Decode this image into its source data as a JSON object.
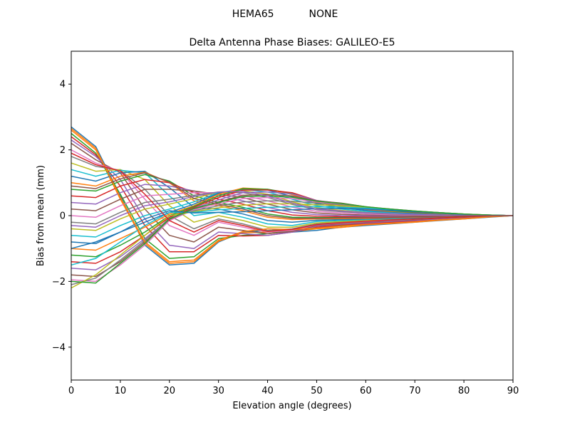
{
  "suptitle": "HEMA65           NONE",
  "chart_data": {
    "type": "line",
    "title": "Delta Antenna Phase Biases: GALILEO-E5",
    "xlabel": "Elevation angle (degrees)",
    "ylabel": "Bias from mean (mm)",
    "xlim": [
      0,
      90
    ],
    "ylim": [
      -5,
      5
    ],
    "xticks": [
      0,
      10,
      20,
      30,
      40,
      50,
      60,
      70,
      80,
      90
    ],
    "yticks": [
      -4,
      -2,
      0,
      2,
      4
    ],
    "x": [
      0,
      5,
      10,
      15,
      20,
      25,
      30,
      35,
      40,
      45,
      50,
      55,
      60,
      65,
      70,
      75,
      80,
      85,
      90
    ],
    "grid": false,
    "legend": "none",
    "colors": [
      "#1f77b4",
      "#ff7f0e",
      "#2ca02c",
      "#d62728",
      "#9467bd",
      "#8c564b",
      "#e377c2",
      "#7f7f7f",
      "#bcbd22",
      "#17becf"
    ],
    "series": [
      {
        "values": [
          2.7,
          2.1,
          0.6,
          -0.9,
          -1.5,
          -1.45,
          -0.8,
          -0.5,
          -0.45,
          -0.5,
          -0.45,
          -0.35,
          -0.3,
          -0.25,
          -0.2,
          -0.15,
          -0.1,
          -0.05,
          0.0
        ]
      },
      {
        "values": [
          2.6,
          2.0,
          0.5,
          -0.85,
          -1.45,
          -1.4,
          -0.78,
          -0.52,
          -0.5,
          -0.48,
          -0.4,
          -0.36,
          -0.28,
          -0.24,
          -0.2,
          -0.14,
          -0.1,
          -0.04,
          0.0
        ]
      },
      {
        "values": [
          2.5,
          1.9,
          0.65,
          -0.7,
          -1.3,
          -1.25,
          -0.7,
          -0.6,
          -0.55,
          -0.45,
          -0.38,
          -0.3,
          -0.26,
          -0.22,
          -0.18,
          -0.12,
          -0.08,
          -0.03,
          0.0
        ]
      },
      {
        "values": [
          2.4,
          1.85,
          0.9,
          -0.3,
          -1.1,
          -1.1,
          -0.6,
          -0.62,
          -0.6,
          -0.5,
          -0.35,
          -0.28,
          -0.24,
          -0.2,
          -0.16,
          -0.1,
          -0.06,
          -0.02,
          0.0
        ]
      },
      {
        "values": [
          2.3,
          1.8,
          1.1,
          -0.1,
          -0.9,
          -1.0,
          -0.5,
          -0.55,
          -0.6,
          -0.5,
          -0.32,
          -0.26,
          -0.22,
          -0.18,
          -0.14,
          -0.1,
          -0.06,
          -0.02,
          0.0
        ]
      },
      {
        "values": [
          2.2,
          1.7,
          1.3,
          0.2,
          -0.6,
          -0.8,
          -0.35,
          -0.45,
          -0.55,
          -0.48,
          -0.3,
          -0.24,
          -0.2,
          -0.16,
          -0.12,
          -0.08,
          -0.05,
          -0.02,
          0.0
        ]
      },
      {
        "values": [
          2.0,
          1.6,
          1.35,
          0.5,
          -0.3,
          -0.6,
          -0.2,
          -0.35,
          -0.5,
          -0.45,
          -0.28,
          -0.22,
          -0.18,
          -0.14,
          -0.1,
          -0.07,
          -0.04,
          -0.01,
          0.0
        ]
      },
      {
        "values": [
          1.8,
          1.5,
          1.38,
          0.8,
          0.0,
          -0.4,
          -0.1,
          -0.25,
          -0.45,
          -0.4,
          -0.25,
          -0.2,
          -0.16,
          -0.12,
          -0.09,
          -0.06,
          -0.03,
          -0.01,
          0.0
        ]
      },
      {
        "values": [
          1.6,
          1.35,
          1.4,
          1.1,
          0.3,
          -0.2,
          0.0,
          -0.15,
          -0.35,
          -0.35,
          -0.22,
          -0.18,
          -0.14,
          -0.1,
          -0.08,
          -0.05,
          -0.03,
          -0.01,
          0.0
        ]
      },
      {
        "values": [
          1.4,
          1.2,
          1.38,
          1.3,
          0.6,
          0.0,
          0.1,
          -0.05,
          -0.25,
          -0.3,
          -0.18,
          -0.15,
          -0.12,
          -0.09,
          -0.07,
          -0.04,
          -0.02,
          -0.01,
          0.0
        ]
      },
      {
        "values": [
          1.2,
          1.05,
          1.3,
          1.35,
          0.85,
          0.25,
          0.2,
          0.05,
          -0.15,
          -0.2,
          -0.14,
          -0.12,
          -0.1,
          -0.08,
          -0.06,
          -0.04,
          -0.02,
          0.0,
          0.0
        ]
      },
      {
        "values": [
          1.0,
          0.9,
          1.2,
          1.32,
          1.0,
          0.45,
          0.3,
          0.15,
          -0.05,
          -0.12,
          -0.1,
          -0.09,
          -0.08,
          -0.06,
          -0.05,
          -0.03,
          -0.02,
          0.0,
          0.0
        ]
      },
      {
        "values": [
          0.8,
          0.75,
          1.05,
          1.25,
          1.05,
          0.6,
          0.4,
          0.25,
          0.05,
          -0.05,
          -0.06,
          -0.06,
          -0.05,
          -0.04,
          -0.03,
          -0.02,
          -0.01,
          0.0,
          0.0
        ]
      },
      {
        "values": [
          0.6,
          0.55,
          0.9,
          1.1,
          1.0,
          0.7,
          0.5,
          0.35,
          0.15,
          0.02,
          -0.02,
          -0.03,
          -0.03,
          -0.02,
          -0.02,
          -0.01,
          -0.01,
          0.0,
          0.0
        ]
      },
      {
        "values": [
          0.4,
          0.35,
          0.7,
          0.95,
          0.9,
          0.75,
          0.6,
          0.45,
          0.25,
          0.1,
          0.03,
          0.0,
          -0.01,
          -0.01,
          -0.01,
          0.0,
          0.0,
          0.0,
          0.0
        ]
      },
      {
        "values": [
          0.2,
          0.15,
          0.5,
          0.8,
          0.8,
          0.75,
          0.65,
          0.55,
          0.35,
          0.18,
          0.08,
          0.04,
          0.02,
          0.01,
          0.0,
          0.0,
          0.0,
          0.0,
          0.0
        ]
      },
      {
        "values": [
          0.0,
          -0.05,
          0.3,
          0.6,
          0.65,
          0.7,
          0.7,
          0.62,
          0.45,
          0.26,
          0.13,
          0.08,
          0.05,
          0.03,
          0.02,
          0.01,
          0.0,
          0.0,
          0.0
        ]
      },
      {
        "values": [
          -0.2,
          -0.25,
          0.1,
          0.4,
          0.5,
          0.62,
          0.72,
          0.7,
          0.55,
          0.34,
          0.18,
          0.12,
          0.08,
          0.05,
          0.03,
          0.02,
          0.01,
          0.0,
          0.0
        ]
      },
      {
        "values": [
          -0.4,
          -0.45,
          -0.1,
          0.2,
          0.35,
          0.52,
          0.72,
          0.76,
          0.65,
          0.42,
          0.24,
          0.16,
          0.1,
          0.07,
          0.05,
          0.03,
          0.01,
          0.0,
          0.0
        ]
      },
      {
        "values": [
          -0.6,
          -0.65,
          -0.3,
          0.0,
          0.2,
          0.42,
          0.7,
          0.8,
          0.72,
          0.5,
          0.3,
          0.2,
          0.13,
          0.09,
          0.06,
          0.04,
          0.02,
          0.0,
          0.0
        ]
      },
      {
        "values": [
          -0.8,
          -0.85,
          -0.5,
          -0.2,
          0.1,
          0.35,
          0.68,
          0.82,
          0.78,
          0.58,
          0.36,
          0.24,
          0.16,
          0.11,
          0.07,
          0.05,
          0.02,
          0.01,
          0.0
        ]
      },
      {
        "values": [
          -1.0,
          -1.05,
          -0.7,
          -0.35,
          0.05,
          0.3,
          0.65,
          0.84,
          0.8,
          0.64,
          0.4,
          0.28,
          0.19,
          0.13,
          0.09,
          0.06,
          0.03,
          0.01,
          0.0
        ]
      },
      {
        "values": [
          -1.2,
          -1.25,
          -0.9,
          -0.5,
          0.0,
          0.28,
          0.6,
          0.82,
          0.8,
          0.68,
          0.44,
          0.32,
          0.22,
          0.15,
          0.1,
          0.07,
          0.03,
          0.01,
          0.0
        ]
      },
      {
        "values": [
          -1.4,
          -1.45,
          -1.1,
          -0.6,
          -0.05,
          0.25,
          0.55,
          0.78,
          0.78,
          0.7,
          0.46,
          0.35,
          0.24,
          0.17,
          0.11,
          0.08,
          0.04,
          0.01,
          0.0
        ]
      },
      {
        "values": [
          -1.6,
          -1.65,
          -1.25,
          -0.7,
          -0.1,
          0.22,
          0.48,
          0.7,
          0.72,
          0.66,
          0.46,
          0.37,
          0.26,
          0.18,
          0.12,
          0.08,
          0.04,
          0.01,
          0.0
        ]
      },
      {
        "values": [
          -1.8,
          -1.85,
          -1.4,
          -0.8,
          -0.12,
          0.2,
          0.42,
          0.62,
          0.64,
          0.6,
          0.45,
          0.38,
          0.27,
          0.19,
          0.13,
          0.09,
          0.04,
          0.02,
          0.0
        ]
      },
      {
        "values": [
          -1.95,
          -2.0,
          -1.5,
          -0.9,
          -0.15,
          0.18,
          0.36,
          0.52,
          0.55,
          0.52,
          0.42,
          0.36,
          0.27,
          0.2,
          0.14,
          0.09,
          0.05,
          0.02,
          0.0
        ]
      },
      {
        "values": [
          -2.1,
          -1.9,
          -1.35,
          -0.75,
          -0.08,
          0.15,
          0.3,
          0.42,
          0.45,
          0.44,
          0.38,
          0.33,
          0.26,
          0.2,
          0.14,
          0.09,
          0.05,
          0.02,
          0.0
        ]
      },
      {
        "values": [
          -2.2,
          -1.8,
          -1.2,
          -0.6,
          0.0,
          0.12,
          0.24,
          0.32,
          0.36,
          0.36,
          0.33,
          0.3,
          0.25,
          0.19,
          0.13,
          0.09,
          0.05,
          0.02,
          0.0
        ]
      },
      {
        "values": [
          -1.5,
          -1.3,
          -0.8,
          -0.3,
          0.1,
          0.1,
          0.18,
          0.22,
          0.25,
          0.27,
          0.27,
          0.26,
          0.23,
          0.18,
          0.13,
          0.08,
          0.04,
          0.02,
          0.0
        ]
      },
      {
        "values": [
          -1.0,
          -0.8,
          -0.5,
          -0.1,
          0.15,
          0.08,
          0.1,
          0.12,
          0.15,
          0.18,
          0.21,
          0.22,
          0.2,
          0.16,
          0.12,
          0.08,
          0.04,
          0.02,
          0.0
        ]
      },
      {
        "values": [
          2.65,
          2.05,
          0.55,
          -0.8,
          -1.4,
          -1.35,
          -0.75,
          -0.48,
          -0.4,
          -0.42,
          -0.38,
          -0.32,
          -0.27,
          -0.23,
          -0.19,
          -0.13,
          -0.09,
          -0.04,
          0.0
        ]
      },
      {
        "values": [
          -2.0,
          -2.05,
          -1.45,
          -0.85,
          -0.1,
          0.22,
          0.4,
          0.58,
          0.6,
          0.56,
          0.44,
          0.37,
          0.27,
          0.2,
          0.14,
          0.09,
          0.05,
          0.02,
          0.0
        ]
      },
      {
        "values": [
          1.9,
          1.55,
          1.36,
          0.65,
          -0.15,
          -0.5,
          -0.15,
          -0.3,
          -0.48,
          -0.42,
          -0.27,
          -0.21,
          -0.17,
          -0.13,
          -0.1,
          -0.07,
          -0.04,
          -0.01,
          0.0
        ]
      },
      {
        "values": [
          -0.3,
          -0.35,
          0.0,
          0.3,
          0.42,
          0.58,
          0.72,
          0.74,
          0.6,
          0.38,
          0.2,
          0.14,
          0.09,
          0.06,
          0.04,
          0.02,
          0.01,
          0.0,
          0.0
        ]
      },
      {
        "values": [
          0.9,
          0.82,
          1.12,
          1.3,
          1.02,
          0.52,
          0.35,
          0.2,
          0.0,
          -0.08,
          -0.08,
          -0.07,
          -0.06,
          -0.05,
          -0.04,
          -0.03,
          -0.01,
          0.0,
          0.0
        ]
      }
    ]
  }
}
